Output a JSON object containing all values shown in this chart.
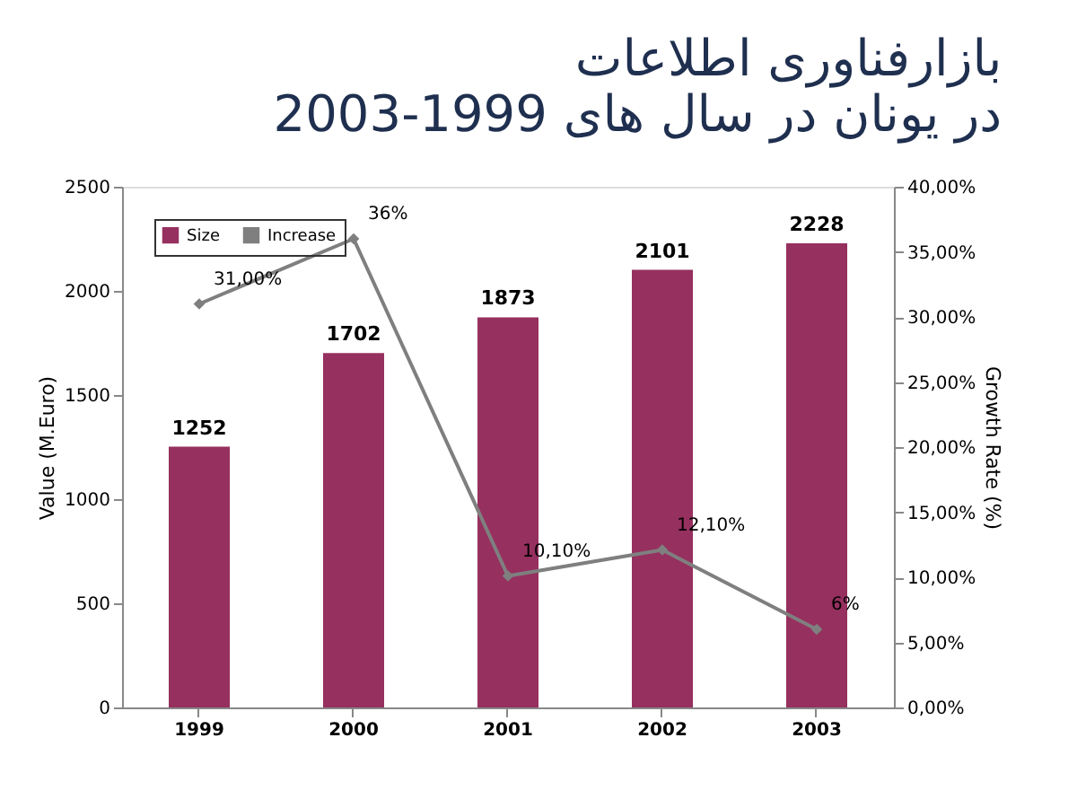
{
  "chart_data": {
    "type": "bar",
    "title": "بازارفناوری اطلاعات",
    "subtitle": "در یونان در سال های 1999-2003",
    "ylabel": "Value (M.Euro)",
    "y2label": "Growth Rate (%)",
    "categories": [
      "1999",
      "2000",
      "2001",
      "2002",
      "2003"
    ],
    "series": [
      {
        "name": "Size",
        "color": "#96305f",
        "values": [
          1252,
          1702,
          1873,
          2101,
          2228
        ],
        "value_labels": [
          "1252",
          "1702",
          "1873",
          "2101",
          "2228"
        ]
      },
      {
        "name": "Increase",
        "type": "line",
        "axis": "y2",
        "color": "#7f7f7f",
        "marker": "diamond",
        "values": [
          31,
          36,
          10.1,
          12.1,
          6
        ],
        "value_labels": [
          "31,00%",
          "36%",
          "10,10%",
          "12,10%",
          "6%"
        ]
      }
    ],
    "ylim": [
      0,
      2500
    ],
    "yticks": [
      0,
      500,
      1000,
      1500,
      2000,
      2500
    ],
    "y2lim": [
      0,
      40
    ],
    "y2ticks": [
      {
        "value": 0,
        "label": "0,00%"
      },
      {
        "value": 5,
        "label": "5,00%"
      },
      {
        "value": 10,
        "label": "10,00%"
      },
      {
        "value": 15,
        "label": "15,00%"
      },
      {
        "value": 20,
        "label": "20,00%"
      },
      {
        "value": 25,
        "label": "25,00%"
      },
      {
        "value": 30,
        "label": "30,00%"
      },
      {
        "value": 35,
        "label": "35,00%"
      },
      {
        "value": 40,
        "label": "40,00%"
      }
    ],
    "legend": "top left",
    "grid": false
  }
}
